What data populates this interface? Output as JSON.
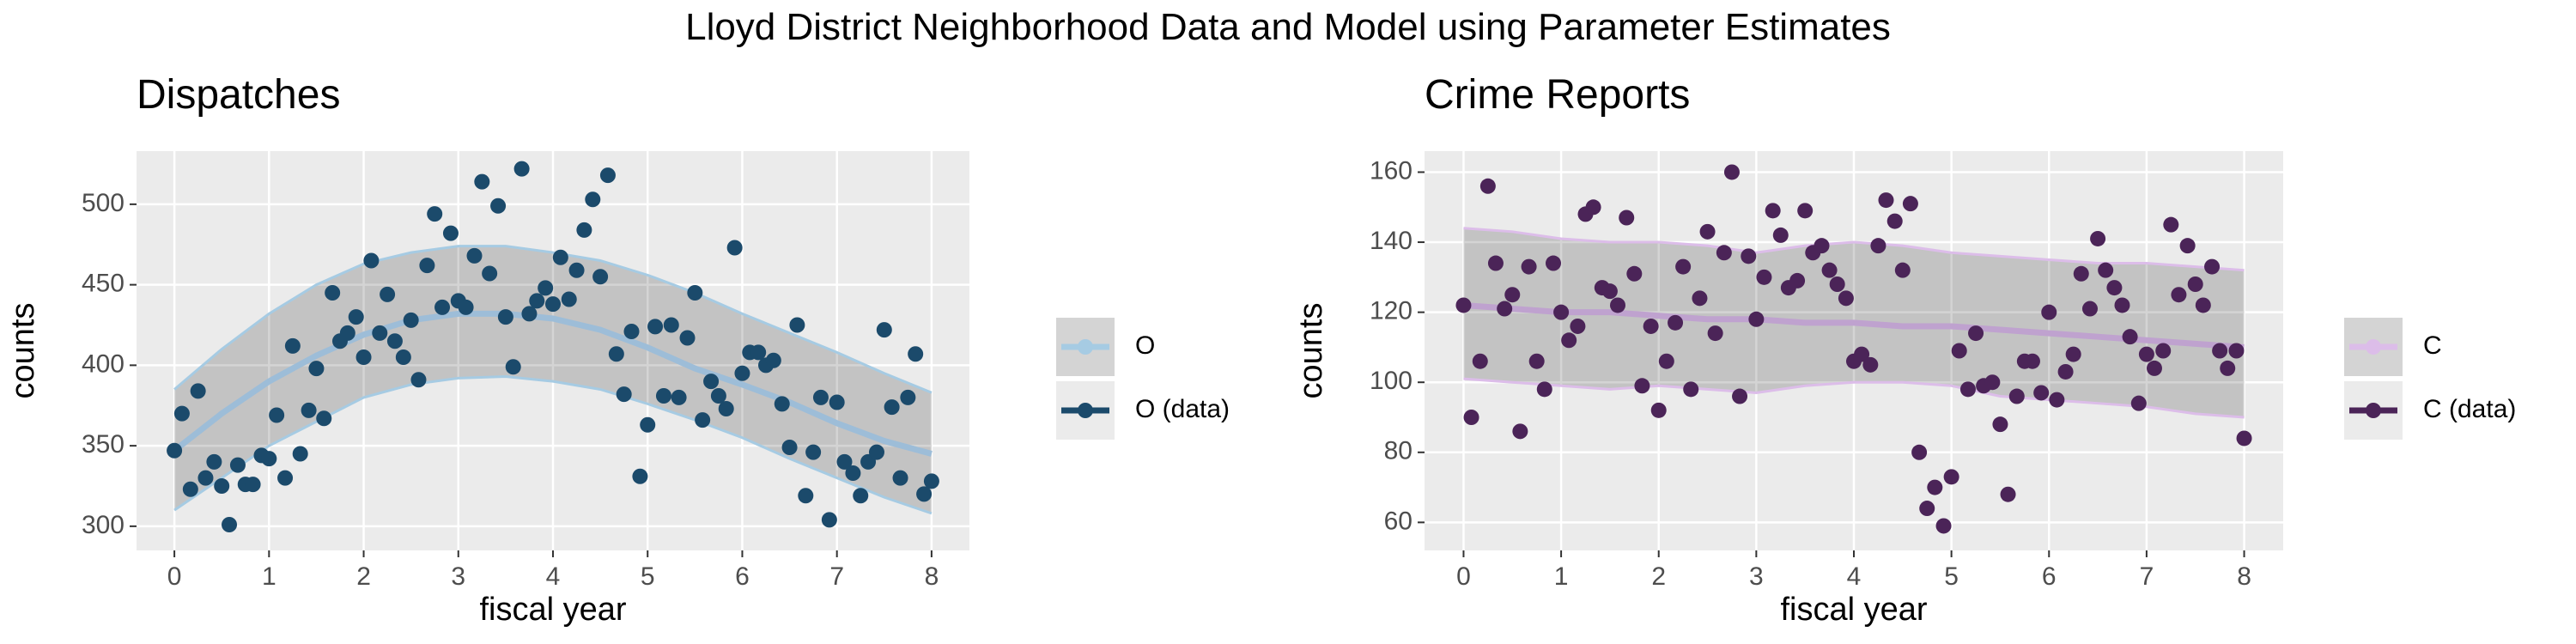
{
  "title": "Lloyd District Neighborhood Data and Model using Parameter Estimates",
  "chart_data": [
    {
      "type": "scatter",
      "title": "Dispatches",
      "xlabel": "fiscal year",
      "ylabel": "counts",
      "xlim": [
        -0.4,
        8.4
      ],
      "ylim": [
        285,
        533
      ],
      "xticks": [
        0,
        1,
        2,
        3,
        4,
        5,
        6,
        7,
        8
      ],
      "yticks": [
        300,
        350,
        400,
        450,
        500
      ],
      "grid": true,
      "series": [
        {
          "name": "O",
          "type": "band",
          "color": "#9dbdd8",
          "band_color": "#a6cbe3",
          "x": [
            0,
            0.5,
            1,
            1.5,
            2,
            2.5,
            3,
            3.5,
            4,
            4.5,
            5,
            5.5,
            6,
            6.5,
            7,
            7.5,
            8
          ],
          "values": [
            347,
            370,
            390,
            406,
            419,
            428,
            432,
            432,
            429,
            422,
            411,
            398,
            388,
            377,
            364,
            353,
            345
          ],
          "lower": [
            310,
            330,
            350,
            365,
            380,
            388,
            392,
            393,
            390,
            385,
            376,
            366,
            355,
            342,
            330,
            318,
            308
          ],
          "upper": [
            385,
            410,
            432,
            450,
            463,
            470,
            474,
            474,
            470,
            465,
            456,
            445,
            432,
            420,
            408,
            395,
            383
          ]
        },
        {
          "name": "O (data)",
          "type": "points",
          "color": "#1b4a6b",
          "x": [
            0,
            0.08,
            0.17,
            0.25,
            0.33,
            0.42,
            0.5,
            0.58,
            0.67,
            0.75,
            0.83,
            0.92,
            1,
            1.08,
            1.17,
            1.25,
            1.33,
            1.42,
            1.5,
            1.58,
            1.67,
            1.75,
            1.83,
            1.92,
            2,
            2.08,
            2.17,
            2.25,
            2.33,
            2.42,
            2.5,
            2.58,
            2.67,
            2.75,
            2.83,
            2.92,
            3,
            3.08,
            3.17,
            3.25,
            3.33,
            3.42,
            3.5,
            3.58,
            3.67,
            3.75,
            3.83,
            3.92,
            4,
            4.08,
            4.17,
            4.25,
            4.33,
            4.42,
            4.5,
            4.58,
            4.67,
            4.75,
            4.83,
            4.92,
            5,
            5.08,
            5.17,
            5.25,
            5.33,
            5.42,
            5.5,
            5.58,
            5.67,
            5.75,
            5.83,
            5.92,
            6,
            6.08,
            6.17,
            6.25,
            6.33,
            6.42,
            6.5,
            6.58,
            6.67,
            6.75,
            6.83,
            6.92,
            7,
            7.08,
            7.17,
            7.25,
            7.33,
            7.42,
            7.5,
            7.58,
            7.67,
            7.75,
            7.83,
            7.92,
            8
          ],
          "values": [
            347,
            370,
            323,
            384,
            330,
            340,
            325,
            301,
            338,
            326,
            326,
            344,
            342,
            369,
            330,
            412,
            345,
            372,
            398,
            367,
            445,
            415,
            420,
            430,
            405,
            465,
            420,
            444,
            415,
            405,
            428,
            391,
            462,
            494,
            436,
            482,
            440,
            436,
            468,
            514,
            457,
            499,
            430,
            399,
            522,
            432,
            440,
            448,
            438,
            467,
            441,
            459,
            484,
            503,
            455,
            518,
            407,
            382,
            421,
            331,
            363,
            424,
            381,
            425,
            380,
            417,
            445,
            366,
            390,
            381,
            373,
            473,
            395,
            408,
            408,
            400,
            403,
            376,
            349,
            425,
            319,
            346,
            380,
            304,
            377,
            340,
            333,
            319,
            340,
            346,
            422,
            374,
            330,
            380,
            407,
            320,
            328
          ]
        }
      ]
    },
    {
      "type": "scatter",
      "title": "Crime Reports",
      "xlabel": "fiscal year",
      "ylabel": "counts",
      "xlim": [
        -0.4,
        8.4
      ],
      "ylim": [
        52,
        166
      ],
      "xticks": [
        0,
        1,
        2,
        3,
        4,
        5,
        6,
        7,
        8
      ],
      "yticks": [
        60,
        80,
        100,
        120,
        140,
        160
      ],
      "grid": true,
      "series": [
        {
          "name": "C",
          "type": "band",
          "color": "#bfa2cf",
          "band_color": "#dcbde9",
          "x": [
            0,
            0.5,
            1,
            1.5,
            2,
            2.5,
            3,
            3.5,
            4,
            4.5,
            5,
            5.5,
            6,
            6.5,
            7,
            7.5,
            8
          ],
          "values": [
            122,
            121,
            120,
            120,
            119,
            118,
            118,
            117,
            117,
            116,
            116,
            115,
            114,
            113,
            112,
            111,
            110
          ],
          "lower": [
            101,
            100,
            99,
            98,
            99,
            98,
            97,
            99,
            100,
            100,
            99,
            96,
            95,
            94,
            93,
            91,
            90
          ],
          "upper": [
            144,
            143,
            141,
            140,
            140,
            139,
            137,
            139,
            140,
            139,
            137,
            136,
            135,
            134,
            134,
            133,
            132
          ]
        },
        {
          "name": "C (data)",
          "type": "points",
          "color": "#4b2458",
          "x": [
            0,
            0.08,
            0.17,
            0.25,
            0.33,
            0.42,
            0.5,
            0.58,
            0.67,
            0.75,
            0.83,
            0.92,
            1,
            1.08,
            1.17,
            1.25,
            1.33,
            1.42,
            1.5,
            1.58,
            1.67,
            1.75,
            1.83,
            1.92,
            2,
            2.08,
            2.17,
            2.25,
            2.33,
            2.42,
            2.5,
            2.58,
            2.67,
            2.75,
            2.83,
            2.92,
            3,
            3.08,
            3.17,
            3.25,
            3.33,
            3.42,
            3.5,
            3.58,
            3.67,
            3.75,
            3.83,
            3.92,
            4,
            4.08,
            4.17,
            4.25,
            4.33,
            4.42,
            4.5,
            4.58,
            4.67,
            4.75,
            4.83,
            4.92,
            5,
            5.08,
            5.17,
            5.25,
            5.33,
            5.42,
            5.5,
            5.58,
            5.67,
            5.75,
            5.83,
            5.92,
            6,
            6.08,
            6.17,
            6.25,
            6.33,
            6.42,
            6.5,
            6.58,
            6.67,
            6.75,
            6.83,
            6.92,
            7,
            7.08,
            7.17,
            7.25,
            7.33,
            7.42,
            7.5,
            7.58,
            7.67,
            7.75,
            7.83,
            7.92,
            8
          ],
          "values": [
            122,
            90,
            106,
            156,
            134,
            121,
            125,
            86,
            133,
            106,
            98,
            134,
            120,
            112,
            116,
            148,
            150,
            127,
            126,
            122,
            147,
            131,
            99,
            116,
            92,
            106,
            117,
            133,
            98,
            124,
            143,
            114,
            137,
            160,
            96,
            136,
            118,
            130,
            149,
            142,
            127,
            129,
            149,
            137,
            139,
            132,
            128,
            124,
            106,
            108,
            105,
            139,
            152,
            146,
            132,
            151,
            80,
            64,
            70,
            59,
            73,
            109,
            98,
            114,
            99,
            100,
            88,
            68,
            96,
            106,
            106,
            97,
            120,
            95,
            103,
            108,
            131,
            121,
            141,
            132,
            127,
            122,
            113,
            94,
            108,
            104,
            109,
            145,
            125,
            139,
            128,
            122,
            133,
            109,
            104,
            109,
            84
          ]
        }
      ]
    }
  ]
}
